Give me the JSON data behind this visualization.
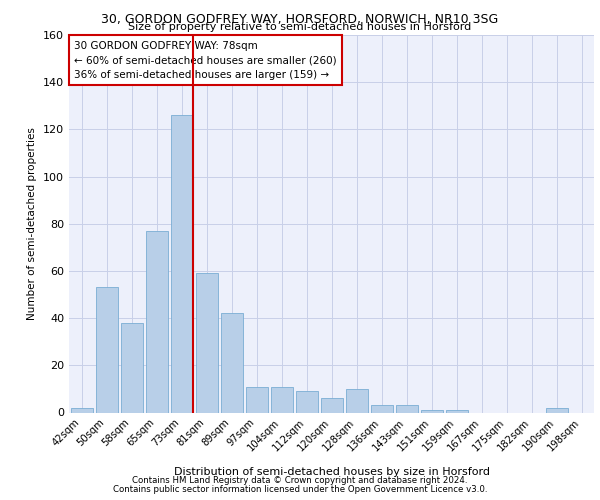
{
  "title1": "30, GORDON GODFREY WAY, HORSFORD, NORWICH, NR10 3SG",
  "title2": "Size of property relative to semi-detached houses in Horsford",
  "xlabel": "Distribution of semi-detached houses by size in Horsford",
  "ylabel": "Number of semi-detached properties",
  "categories": [
    "42sqm",
    "50sqm",
    "58sqm",
    "65sqm",
    "73sqm",
    "81sqm",
    "89sqm",
    "97sqm",
    "104sqm",
    "112sqm",
    "120sqm",
    "128sqm",
    "136sqm",
    "143sqm",
    "151sqm",
    "159sqm",
    "167sqm",
    "175sqm",
    "182sqm",
    "190sqm",
    "198sqm"
  ],
  "values": [
    2,
    53,
    38,
    77,
    126,
    59,
    42,
    11,
    11,
    9,
    6,
    10,
    3,
    3,
    1,
    1,
    0,
    0,
    0,
    2,
    0
  ],
  "bar_color": "#b8cfe8",
  "bar_edge_color": "#7aadd4",
  "annotation_title": "30 GORDON GODFREY WAY: 78sqm",
  "annotation_line1": "← 60% of semi-detached houses are smaller (260)",
  "annotation_line2": "36% of semi-detached houses are larger (159) →",
  "line_color": "#cc0000",
  "ylim": [
    0,
    160
  ],
  "yticks": [
    0,
    20,
    40,
    60,
    80,
    100,
    120,
    140,
    160
  ],
  "footer1": "Contains HM Land Registry data © Crown copyright and database right 2024.",
  "footer2": "Contains public sector information licensed under the Open Government Licence v3.0.",
  "bg_color": "#edf0fb",
  "grid_color": "#c8cfe8"
}
